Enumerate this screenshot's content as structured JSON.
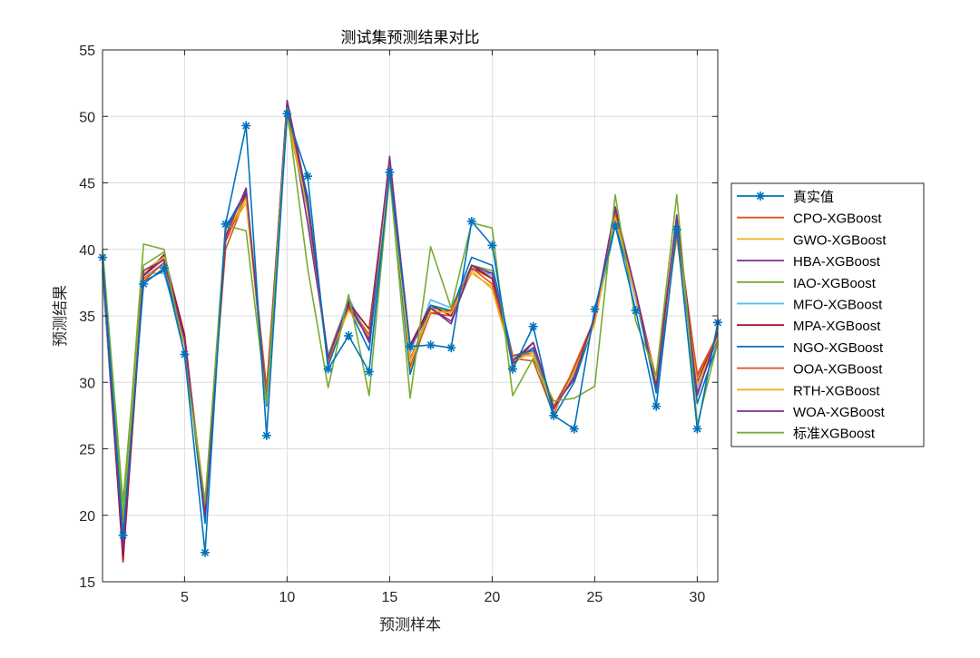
{
  "chart_data": {
    "type": "line",
    "title": "测试集预测结果对比",
    "xlabel": "预测样本",
    "ylabel": "预测结果",
    "xlim": [
      1,
      31
    ],
    "ylim": [
      15,
      55
    ],
    "xticks": [
      5,
      10,
      15,
      20,
      25,
      30
    ],
    "yticks": [
      15,
      20,
      25,
      30,
      35,
      40,
      45,
      50,
      55
    ],
    "grid": true,
    "legend_position": "outside-right",
    "x": [
      1,
      2,
      3,
      4,
      5,
      6,
      7,
      8,
      9,
      10,
      11,
      12,
      13,
      14,
      15,
      16,
      17,
      18,
      19,
      20,
      21,
      22,
      23,
      24,
      25,
      26,
      27,
      28,
      29,
      30,
      31
    ],
    "series": [
      {
        "name": "真实值",
        "color": "#0072BD",
        "marker": "asterisk",
        "values": [
          39.4,
          18.5,
          37.4,
          38.6,
          32.1,
          17.2,
          41.9,
          49.3,
          26.0,
          50.2,
          45.5,
          31.0,
          33.5,
          30.8,
          45.8,
          32.7,
          32.8,
          32.6,
          42.1,
          40.3,
          31.0,
          34.2,
          27.5,
          26.5,
          35.5,
          41.8,
          35.4,
          28.2,
          41.5,
          26.5,
          34.5
        ]
      },
      {
        "name": "CPO-XGBoost",
        "color": "#D95319",
        "values": [
          39.0,
          18.0,
          37.8,
          39.0,
          33.2,
          20.5,
          40.0,
          44.0,
          29.0,
          50.5,
          43.5,
          31.8,
          35.8,
          33.4,
          46.2,
          31.8,
          35.2,
          35.0,
          38.6,
          37.8,
          31.8,
          31.6,
          27.6,
          31.2,
          34.8,
          42.4,
          36.5,
          30.2,
          41.8,
          30.6,
          33.6
        ]
      },
      {
        "name": "GWO-XGBoost",
        "color": "#EDB120",
        "values": [
          38.5,
          19.0,
          38.2,
          39.2,
          33.0,
          21.0,
          41.0,
          43.5,
          29.2,
          49.8,
          43.0,
          31.5,
          35.9,
          33.6,
          46.0,
          31.0,
          35.4,
          35.3,
          38.2,
          37.2,
          32.0,
          32.0,
          28.0,
          30.5,
          34.5,
          42.6,
          36.4,
          30.4,
          40.8,
          29.8,
          33.2
        ]
      },
      {
        "name": "HBA-XGBoost",
        "color": "#7E2F8E",
        "values": [
          38.2,
          17.0,
          38.0,
          39.3,
          33.4,
          20.0,
          41.5,
          44.2,
          28.4,
          51.0,
          42.0,
          32.0,
          36.2,
          33.0,
          46.8,
          32.4,
          35.6,
          34.6,
          38.5,
          38.2,
          31.6,
          32.6,
          28.2,
          30.2,
          34.6,
          43.2,
          36.6,
          29.4,
          42.2,
          29.2,
          33.4
        ]
      },
      {
        "name": "IAO-XGBoost",
        "color": "#77AC30",
        "values": [
          40.0,
          21.0,
          38.8,
          39.8,
          33.0,
          19.8,
          41.0,
          44.6,
          29.4,
          50.0,
          43.0,
          32.0,
          36.0,
          34.0,
          46.4,
          31.6,
          35.6,
          35.4,
          38.8,
          38.4,
          31.2,
          33.0,
          28.0,
          30.4,
          34.8,
          42.4,
          36.8,
          30.0,
          42.0,
          29.0,
          34.0
        ]
      },
      {
        "name": "MFO-XGBoost",
        "color": "#4DBEEE",
        "values": [
          38.0,
          18.0,
          38.2,
          38.2,
          32.8,
          20.6,
          41.8,
          44.0,
          29.0,
          50.2,
          43.6,
          31.6,
          36.4,
          33.2,
          45.6,
          32.2,
          36.2,
          35.6,
          38.8,
          38.0,
          31.8,
          32.4,
          28.0,
          30.6,
          34.8,
          42.2,
          36.2,
          29.6,
          41.8,
          29.6,
          33.8
        ]
      },
      {
        "name": "MPA-XGBoost",
        "color": "#A2142F",
        "values": [
          39.2,
          16.5,
          38.0,
          39.6,
          33.6,
          20.2,
          40.6,
          44.2,
          28.8,
          51.2,
          43.8,
          31.8,
          36.0,
          34.0,
          46.6,
          32.8,
          35.8,
          35.0,
          38.8,
          37.8,
          31.4,
          33.0,
          28.2,
          30.8,
          34.8,
          43.0,
          36.8,
          30.2,
          42.4,
          30.0,
          33.6
        ]
      },
      {
        "name": "NGO-XGBoost",
        "color": "#0072BD",
        "values": [
          38.6,
          18.2,
          37.6,
          38.4,
          33.2,
          19.4,
          41.6,
          44.4,
          28.2,
          50.4,
          44.0,
          31.2,
          35.6,
          32.4,
          46.0,
          30.6,
          35.8,
          35.4,
          39.4,
          38.8,
          32.0,
          32.4,
          27.4,
          30.0,
          34.6,
          41.8,
          36.6,
          29.2,
          42.0,
          28.4,
          33.0
        ]
      },
      {
        "name": "OOA-XGBoost",
        "color": "#D95319",
        "values": [
          38.4,
          19.4,
          37.6,
          39.0,
          33.2,
          20.4,
          40.8,
          44.0,
          29.6,
          50.6,
          43.4,
          31.6,
          35.6,
          33.6,
          46.6,
          31.2,
          35.2,
          35.4,
          38.6,
          37.4,
          32.0,
          32.2,
          28.2,
          31.0,
          34.6,
          42.6,
          36.6,
          30.0,
          41.2,
          30.4,
          33.6
        ]
      },
      {
        "name": "RTH-XGBoost",
        "color": "#EDB120",
        "values": [
          38.8,
          18.8,
          38.4,
          39.4,
          32.8,
          20.8,
          41.2,
          43.8,
          28.8,
          50.0,
          43.2,
          31.8,
          35.4,
          33.4,
          45.8,
          31.6,
          35.4,
          35.2,
          38.4,
          37.0,
          31.6,
          32.2,
          27.8,
          30.8,
          34.4,
          42.4,
          36.4,
          30.2,
          41.4,
          29.8,
          33.4
        ]
      },
      {
        "name": "WOA-XGBoost",
        "color": "#7E2F8E",
        "values": [
          39.0,
          17.4,
          38.4,
          39.2,
          33.2,
          20.0,
          41.0,
          44.6,
          28.6,
          51.2,
          43.4,
          31.8,
          35.8,
          33.2,
          47.0,
          32.6,
          35.6,
          34.4,
          38.8,
          38.2,
          31.6,
          33.0,
          28.0,
          30.4,
          35.0,
          43.2,
          36.8,
          29.6,
          42.6,
          29.0,
          33.8
        ]
      },
      {
        "name": "标准XGBoost",
        "color": "#77AC30",
        "values": [
          40.0,
          20.0,
          40.4,
          40.0,
          32.0,
          21.0,
          41.8,
          41.4,
          28.4,
          50.6,
          38.6,
          29.6,
          36.6,
          29.0,
          45.6,
          28.8,
          40.2,
          35.6,
          42.0,
          41.6,
          29.0,
          31.8,
          28.6,
          28.8,
          29.7,
          44.1,
          34.6,
          30.5,
          44.1,
          26.8,
          33.0
        ]
      }
    ]
  }
}
